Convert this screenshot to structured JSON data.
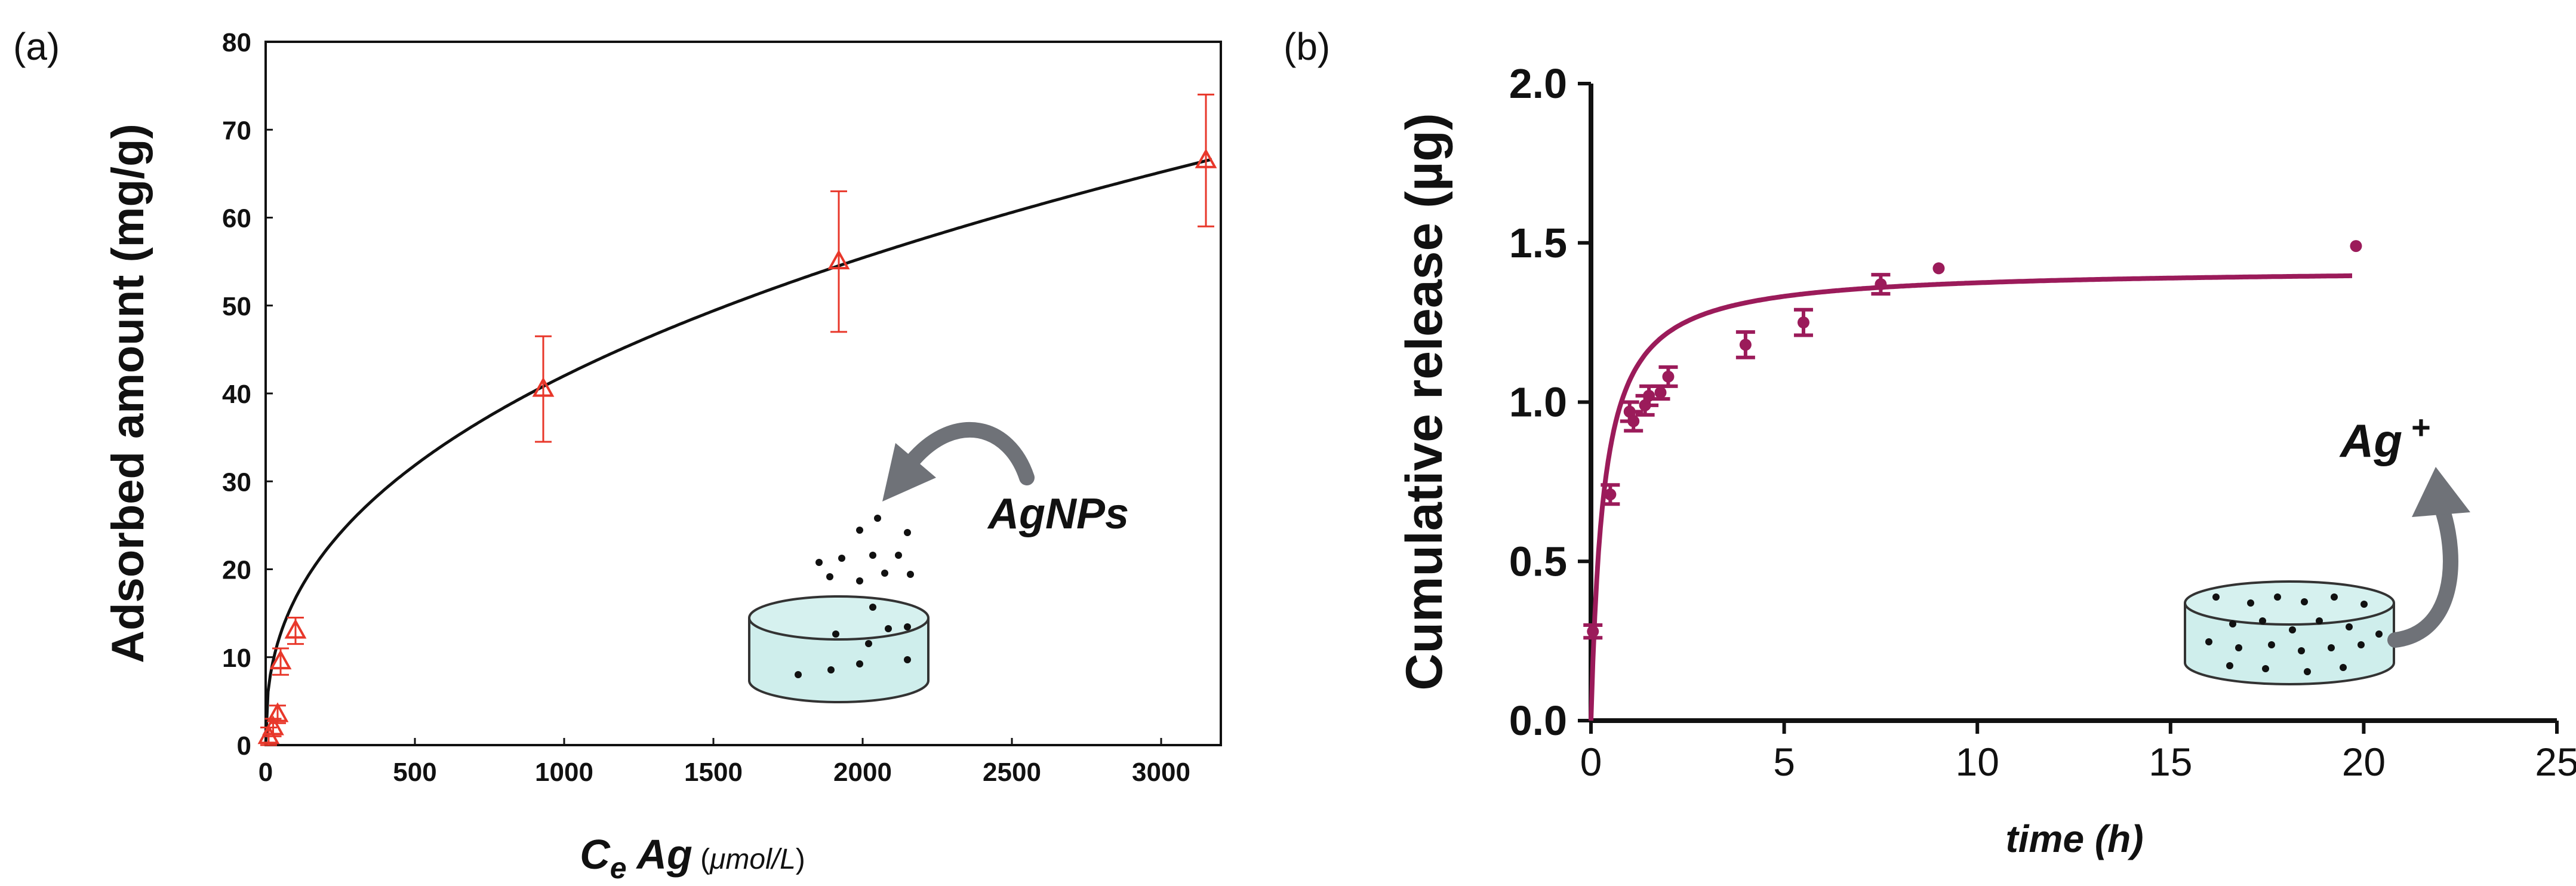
{
  "chart_data": [
    {
      "panel": "(a)",
      "type": "scatter",
      "xlabel_parts": [
        "C",
        "e",
        " Ag",
        " (",
        "μmol/L",
        ")"
      ],
      "ylabel": "Adsorbed amount  (mg/g)",
      "xlim": [
        0,
        3200
      ],
      "ylim": [
        0,
        80
      ],
      "x_ticks": [
        "0",
        "500",
        "1000",
        "1500",
        "2000",
        "2500",
        "3000"
      ],
      "y_ticks": [
        "0",
        "10",
        "20",
        "30",
        "40",
        "50",
        "60",
        "70",
        "80"
      ],
      "points": [
        {
          "x": 10,
          "y": 1,
          "err": 1
        },
        {
          "x": 25,
          "y": 2,
          "err": 1
        },
        {
          "x": 40,
          "y": 3.5,
          "err": 1
        },
        {
          "x": 50,
          "y": 9.5,
          "err": 1.5
        },
        {
          "x": 100,
          "y": 13,
          "err": 1.5
        },
        {
          "x": 930,
          "y": 40.5,
          "err": 6
        },
        {
          "x": 1920,
          "y": 55,
          "err": 8
        },
        {
          "x": 3150,
          "y": 66.5,
          "err": 7.5
        }
      ],
      "fit": {
        "model": "power",
        "a": 2.65,
        "b": 0.4,
        "x_range": [
          0,
          3170
        ]
      },
      "annotation": "AgNPs",
      "colors": {
        "points": "#e8372a",
        "fit": "#111111",
        "dish": "#cfeeec"
      }
    },
    {
      "panel": "(b)",
      "type": "scatter",
      "xlabel": "time (h)",
      "ylabel": "Cumulative release (µg)",
      "xlim": [
        0,
        25
      ],
      "ylim": [
        0,
        2.0
      ],
      "x_ticks": [
        "0",
        "5",
        "10",
        "15",
        "20",
        "25"
      ],
      "y_ticks": [
        "0.0",
        "0.5",
        "1.0",
        "1.5",
        "2.0"
      ],
      "points": [
        {
          "x": 0.05,
          "y": 0.28,
          "err": 0.02
        },
        {
          "x": 0.5,
          "y": 0.71,
          "err": 0.03
        },
        {
          "x": 1.0,
          "y": 0.97,
          "err": 0.03
        },
        {
          "x": 1.1,
          "y": 0.94,
          "err": 0.03
        },
        {
          "x": 1.4,
          "y": 0.99,
          "err": 0.03
        },
        {
          "x": 1.5,
          "y": 1.02,
          "err": 0.03
        },
        {
          "x": 1.8,
          "y": 1.03,
          "err": 0.02
        },
        {
          "x": 2.0,
          "y": 1.08,
          "err": 0.03
        },
        {
          "x": 4.0,
          "y": 1.18,
          "err": 0.04
        },
        {
          "x": 5.5,
          "y": 1.25,
          "err": 0.04
        },
        {
          "x": 7.5,
          "y": 1.37,
          "err": 0.03
        },
        {
          "x": 9.0,
          "y": 1.42,
          "err": 0
        },
        {
          "x": 19.8,
          "y": 1.49,
          "err": 0
        }
      ],
      "fit": {
        "model": "hyperbolic",
        "ymax": 1.42,
        "k": 0.33,
        "x_range": [
          0,
          19.7
        ]
      },
      "annotation_main": "Ag",
      "annotation_sup": "+",
      "colors": {
        "points": "#9b1b5a",
        "fit": "#9b1b5a",
        "dish": "#cfeeec",
        "arrow": "#6f7278"
      }
    }
  ],
  "labels": {
    "panel_a": "(a)",
    "panel_b": "(b)"
  }
}
